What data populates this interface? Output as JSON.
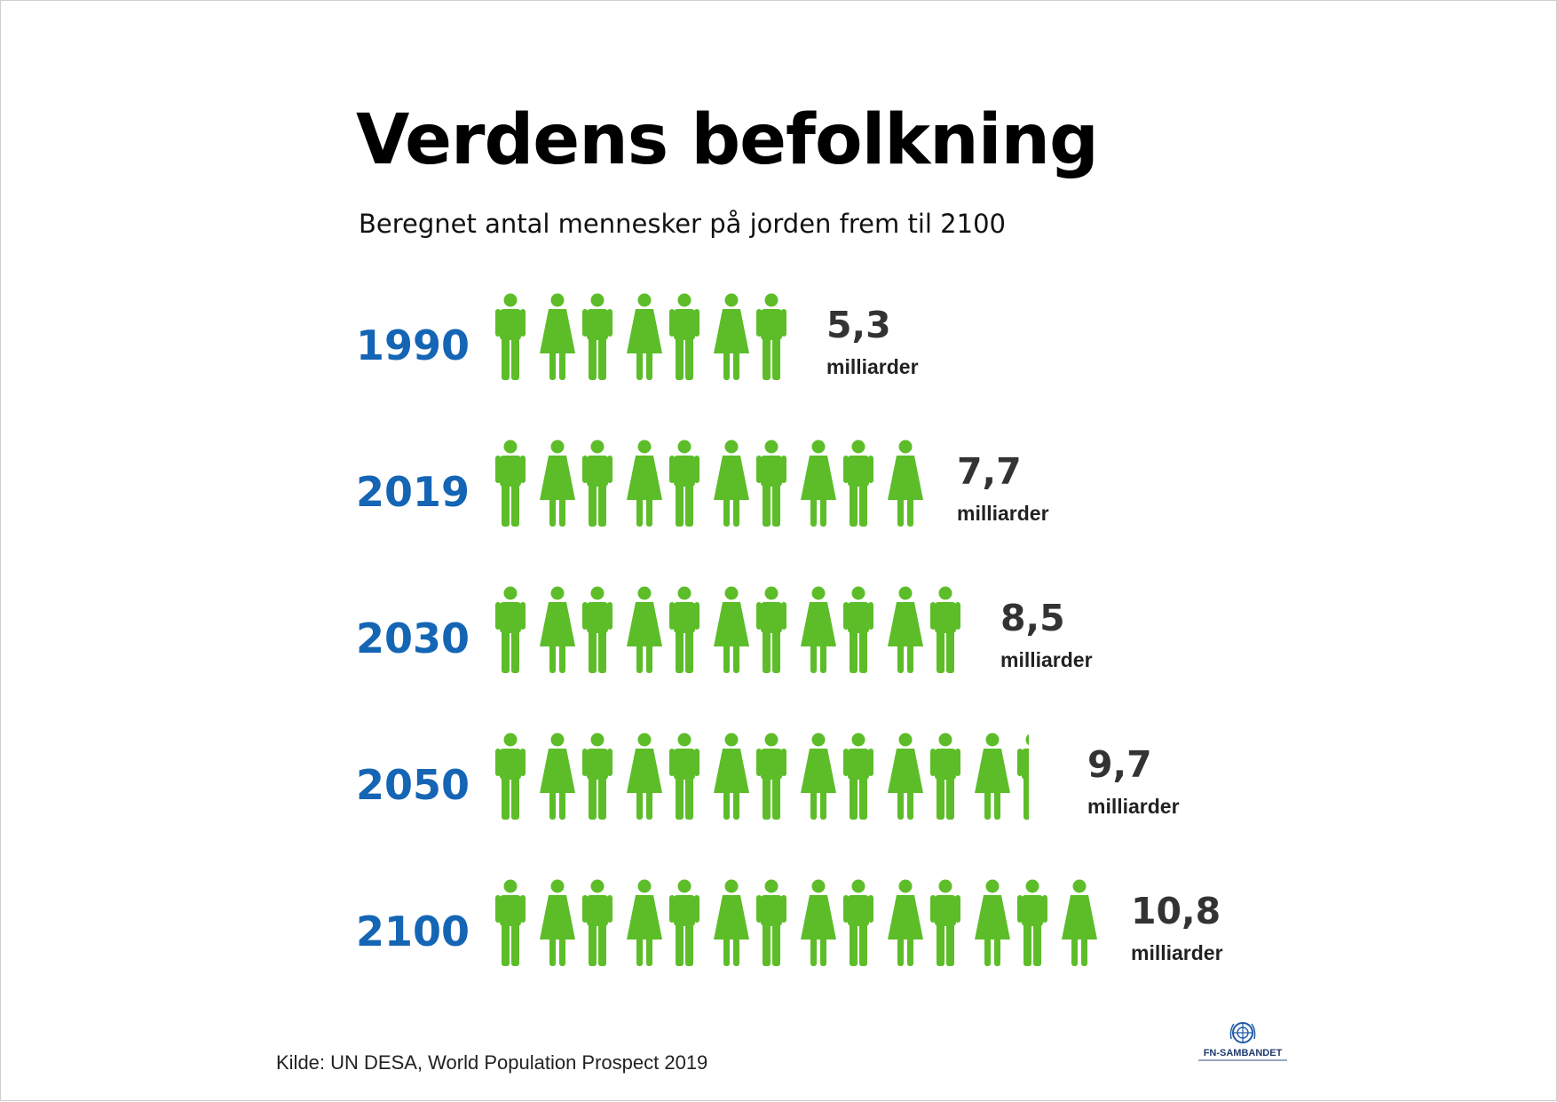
{
  "title": "Verdens befolkning",
  "subtitle": "Beregnet antal mennesker på jorden frem til 2100",
  "colors": {
    "figure": "#5cbd29",
    "year": "#1565b5",
    "value": "#333333"
  },
  "chart_data": {
    "type": "pictogram",
    "title": "Verdens befolkning",
    "subtitle": "Beregnet antal mennesker på jorden frem til 2100",
    "unit": "milliarder",
    "unit_per_icon": 0.77,
    "icon_pattern": [
      "man",
      "woman"
    ],
    "categories": [
      "1990",
      "2019",
      "2030",
      "2050",
      "2100"
    ],
    "values": [
      5.3,
      7.7,
      8.5,
      9.7,
      10.8
    ],
    "labels": [
      "5,3",
      "7,7",
      "8,5",
      "9,7",
      "10,8"
    ],
    "rows": [
      {
        "year": "1990",
        "value_label": "5,3",
        "unit": "milliarder",
        "icons": 7,
        "partial": 0
      },
      {
        "year": "2019",
        "value_label": "7,7",
        "unit": "milliarder",
        "icons": 10,
        "partial": 0
      },
      {
        "year": "2030",
        "value_label": "8,5",
        "unit": "milliarder",
        "icons": 11,
        "partial": 0
      },
      {
        "year": "2050",
        "value_label": "9,7",
        "unit": "milliarder",
        "icons": 12,
        "partial": 0.35
      },
      {
        "year": "2100",
        "value_label": "10,8",
        "unit": "milliarder",
        "icons": 14,
        "partial": 0
      }
    ]
  },
  "source": "Kilde: UN DESA, World Population Prospect 2019",
  "logo": {
    "name": "un-emblem-icon",
    "text": "FN-SAMBANDET"
  }
}
